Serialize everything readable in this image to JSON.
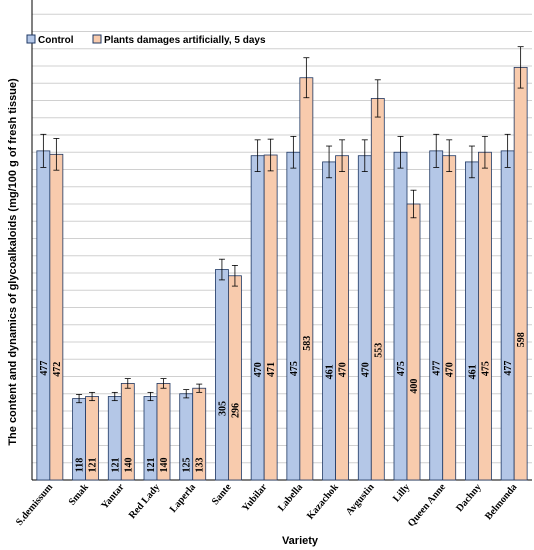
{
  "chart_data": {
    "type": "bar",
    "title": "",
    "xlabel": "Variety",
    "ylabel": "The content and dynamics of glycoalkaloids (mg/100 g of fresh tissue)",
    "categories": [
      "S.demissum",
      "Smak",
      "Yantar",
      "Red Lady",
      "Laperla",
      "Sante",
      "Yubilar",
      "Labella",
      "Kazachok",
      "Avgustin",
      "Lilly",
      "Queen Anne",
      "Dachny",
      "Belmonda"
    ],
    "series": [
      {
        "name": "Control",
        "color": "#b4c7e7",
        "values": [
          477,
          118,
          121,
          121,
          125,
          305,
          470,
          475,
          461,
          470,
          475,
          477,
          461,
          477
        ],
        "errors": [
          24,
          6,
          6,
          6,
          6,
          15,
          23,
          23,
          23,
          23,
          23,
          24,
          23,
          24
        ]
      },
      {
        "name": "Plants damages artificially, 5 days",
        "color": "#f8cbad",
        "values": [
          472,
          121,
          140,
          140,
          133,
          296,
          471,
          583,
          470,
          553,
          400,
          470,
          475,
          598
        ],
        "errors": [
          23,
          6,
          7,
          7,
          6,
          15,
          23,
          29,
          23,
          27,
          20,
          23,
          23,
          30
        ]
      }
    ],
    "value_labels": [
      [
        "477",
        "118",
        "121",
        "121",
        "125",
        "305",
        "470",
        "475",
        "461",
        "470",
        "475",
        "477",
        "461",
        "477"
      ],
      [
        "472",
        "121",
        "140",
        "140",
        "133",
        "296",
        "471",
        "583",
        "470",
        "553",
        "400",
        "470",
        "475",
        "598"
      ]
    ],
    "ylim": [
      0,
      700
    ],
    "grid": true,
    "legend_position": "top-left",
    "y_ticks_shown": false
  }
}
